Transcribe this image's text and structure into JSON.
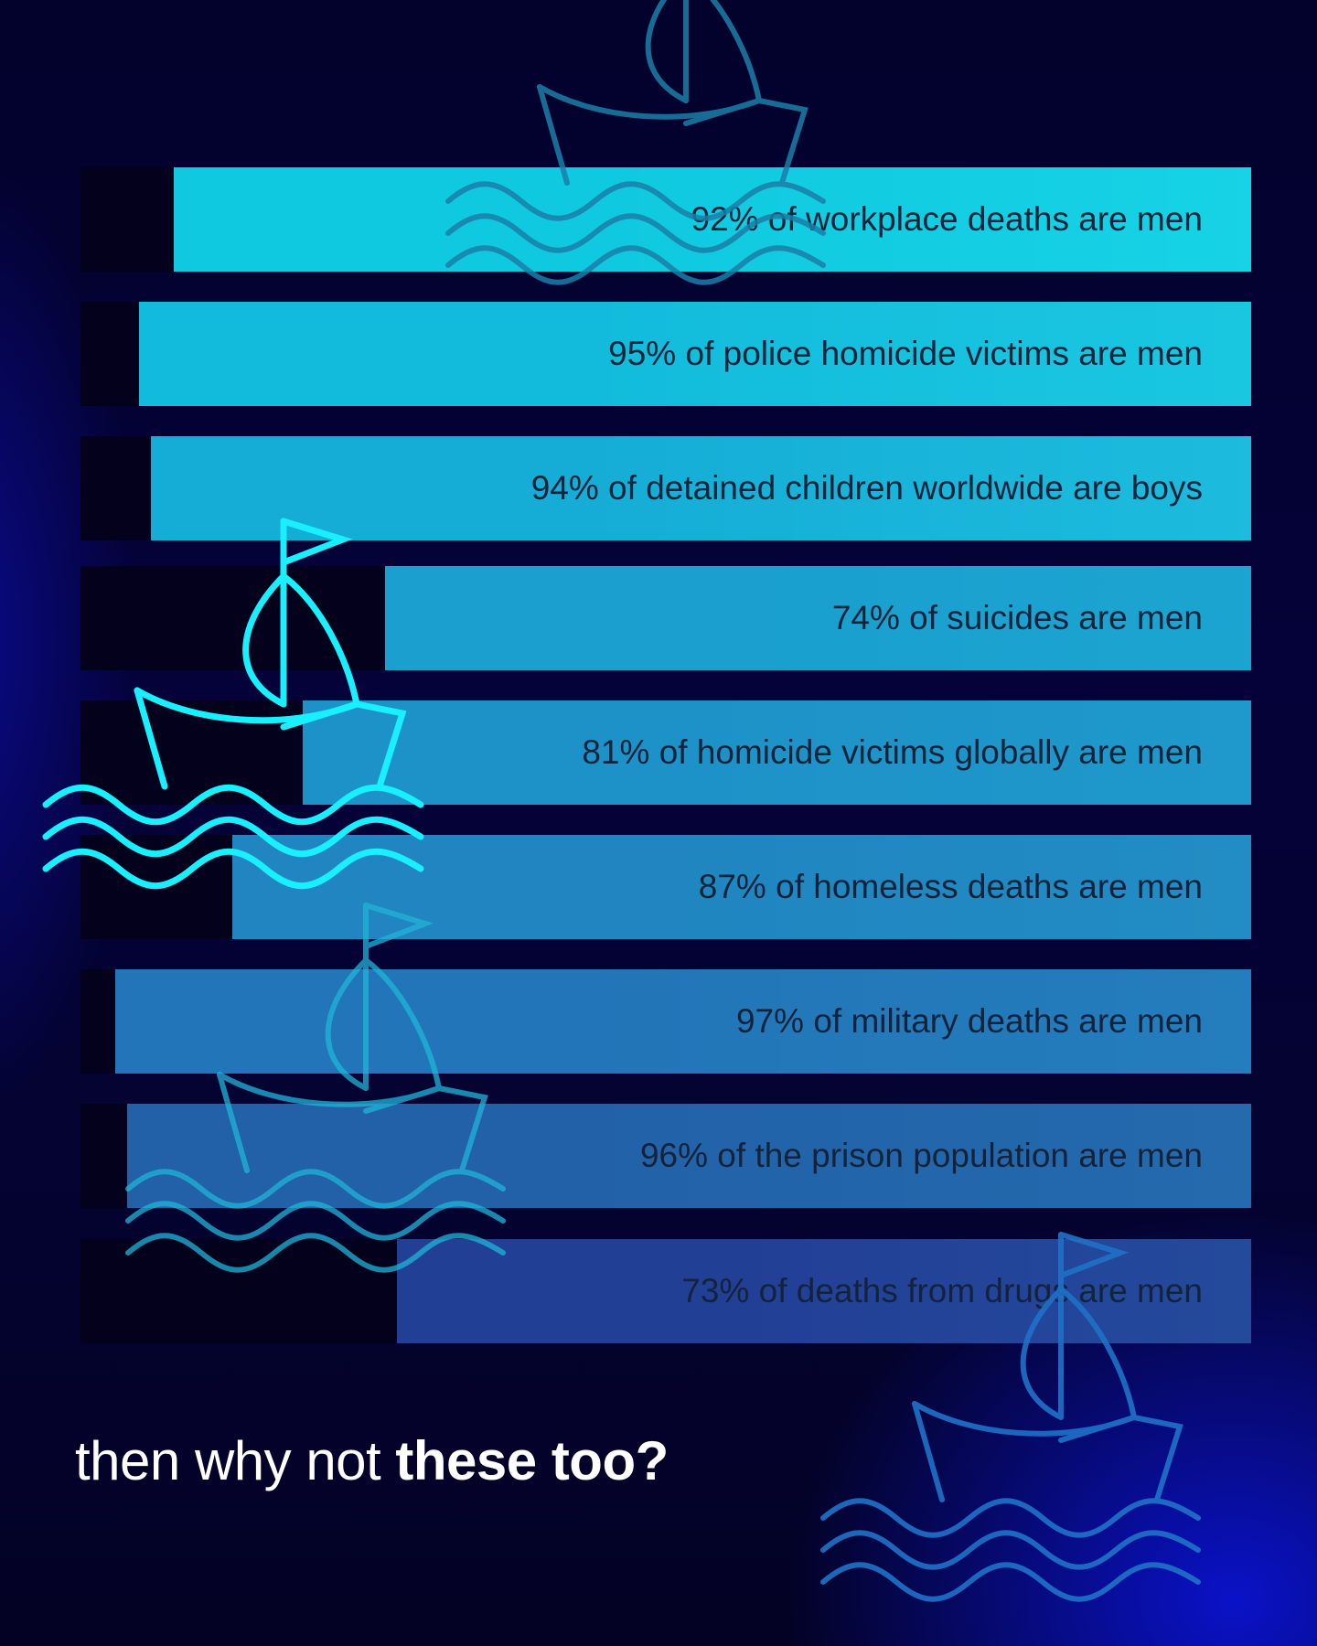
{
  "chart_data": {
    "type": "bar",
    "orientation": "horizontal",
    "categories": [
      "92% of workplace deaths are men",
      "95% of police homicide victims are men",
      "94% of detained children worldwide are boys",
      "74% of suicides are men",
      "81% of homicide victims globally are men",
      "87% of homeless deaths are men",
      "97% of military deaths are men",
      "96% of the prison population are men",
      "73% of deaths from drugs are men"
    ],
    "values": [
      92,
      95,
      94,
      74,
      81,
      87,
      97,
      96,
      73
    ],
    "xlim": [
      0,
      100
    ],
    "grid": false,
    "colors": [
      "#0fc9e0",
      "#12bbdb",
      "#15add6",
      "#1a9fce",
      "#1d92c8",
      "#2085c0",
      "#2275b8",
      "#2261a8",
      "#223f96"
    ],
    "background_color": "#03011c"
  },
  "footer": {
    "text_regular": "then why not ",
    "text_bold": "these too?"
  },
  "decorations": {
    "icon": "sailboat-icon",
    "colors": [
      "#1a7fa8",
      "#19f0ff",
      "#20b4d8",
      "#1f72c8"
    ]
  }
}
